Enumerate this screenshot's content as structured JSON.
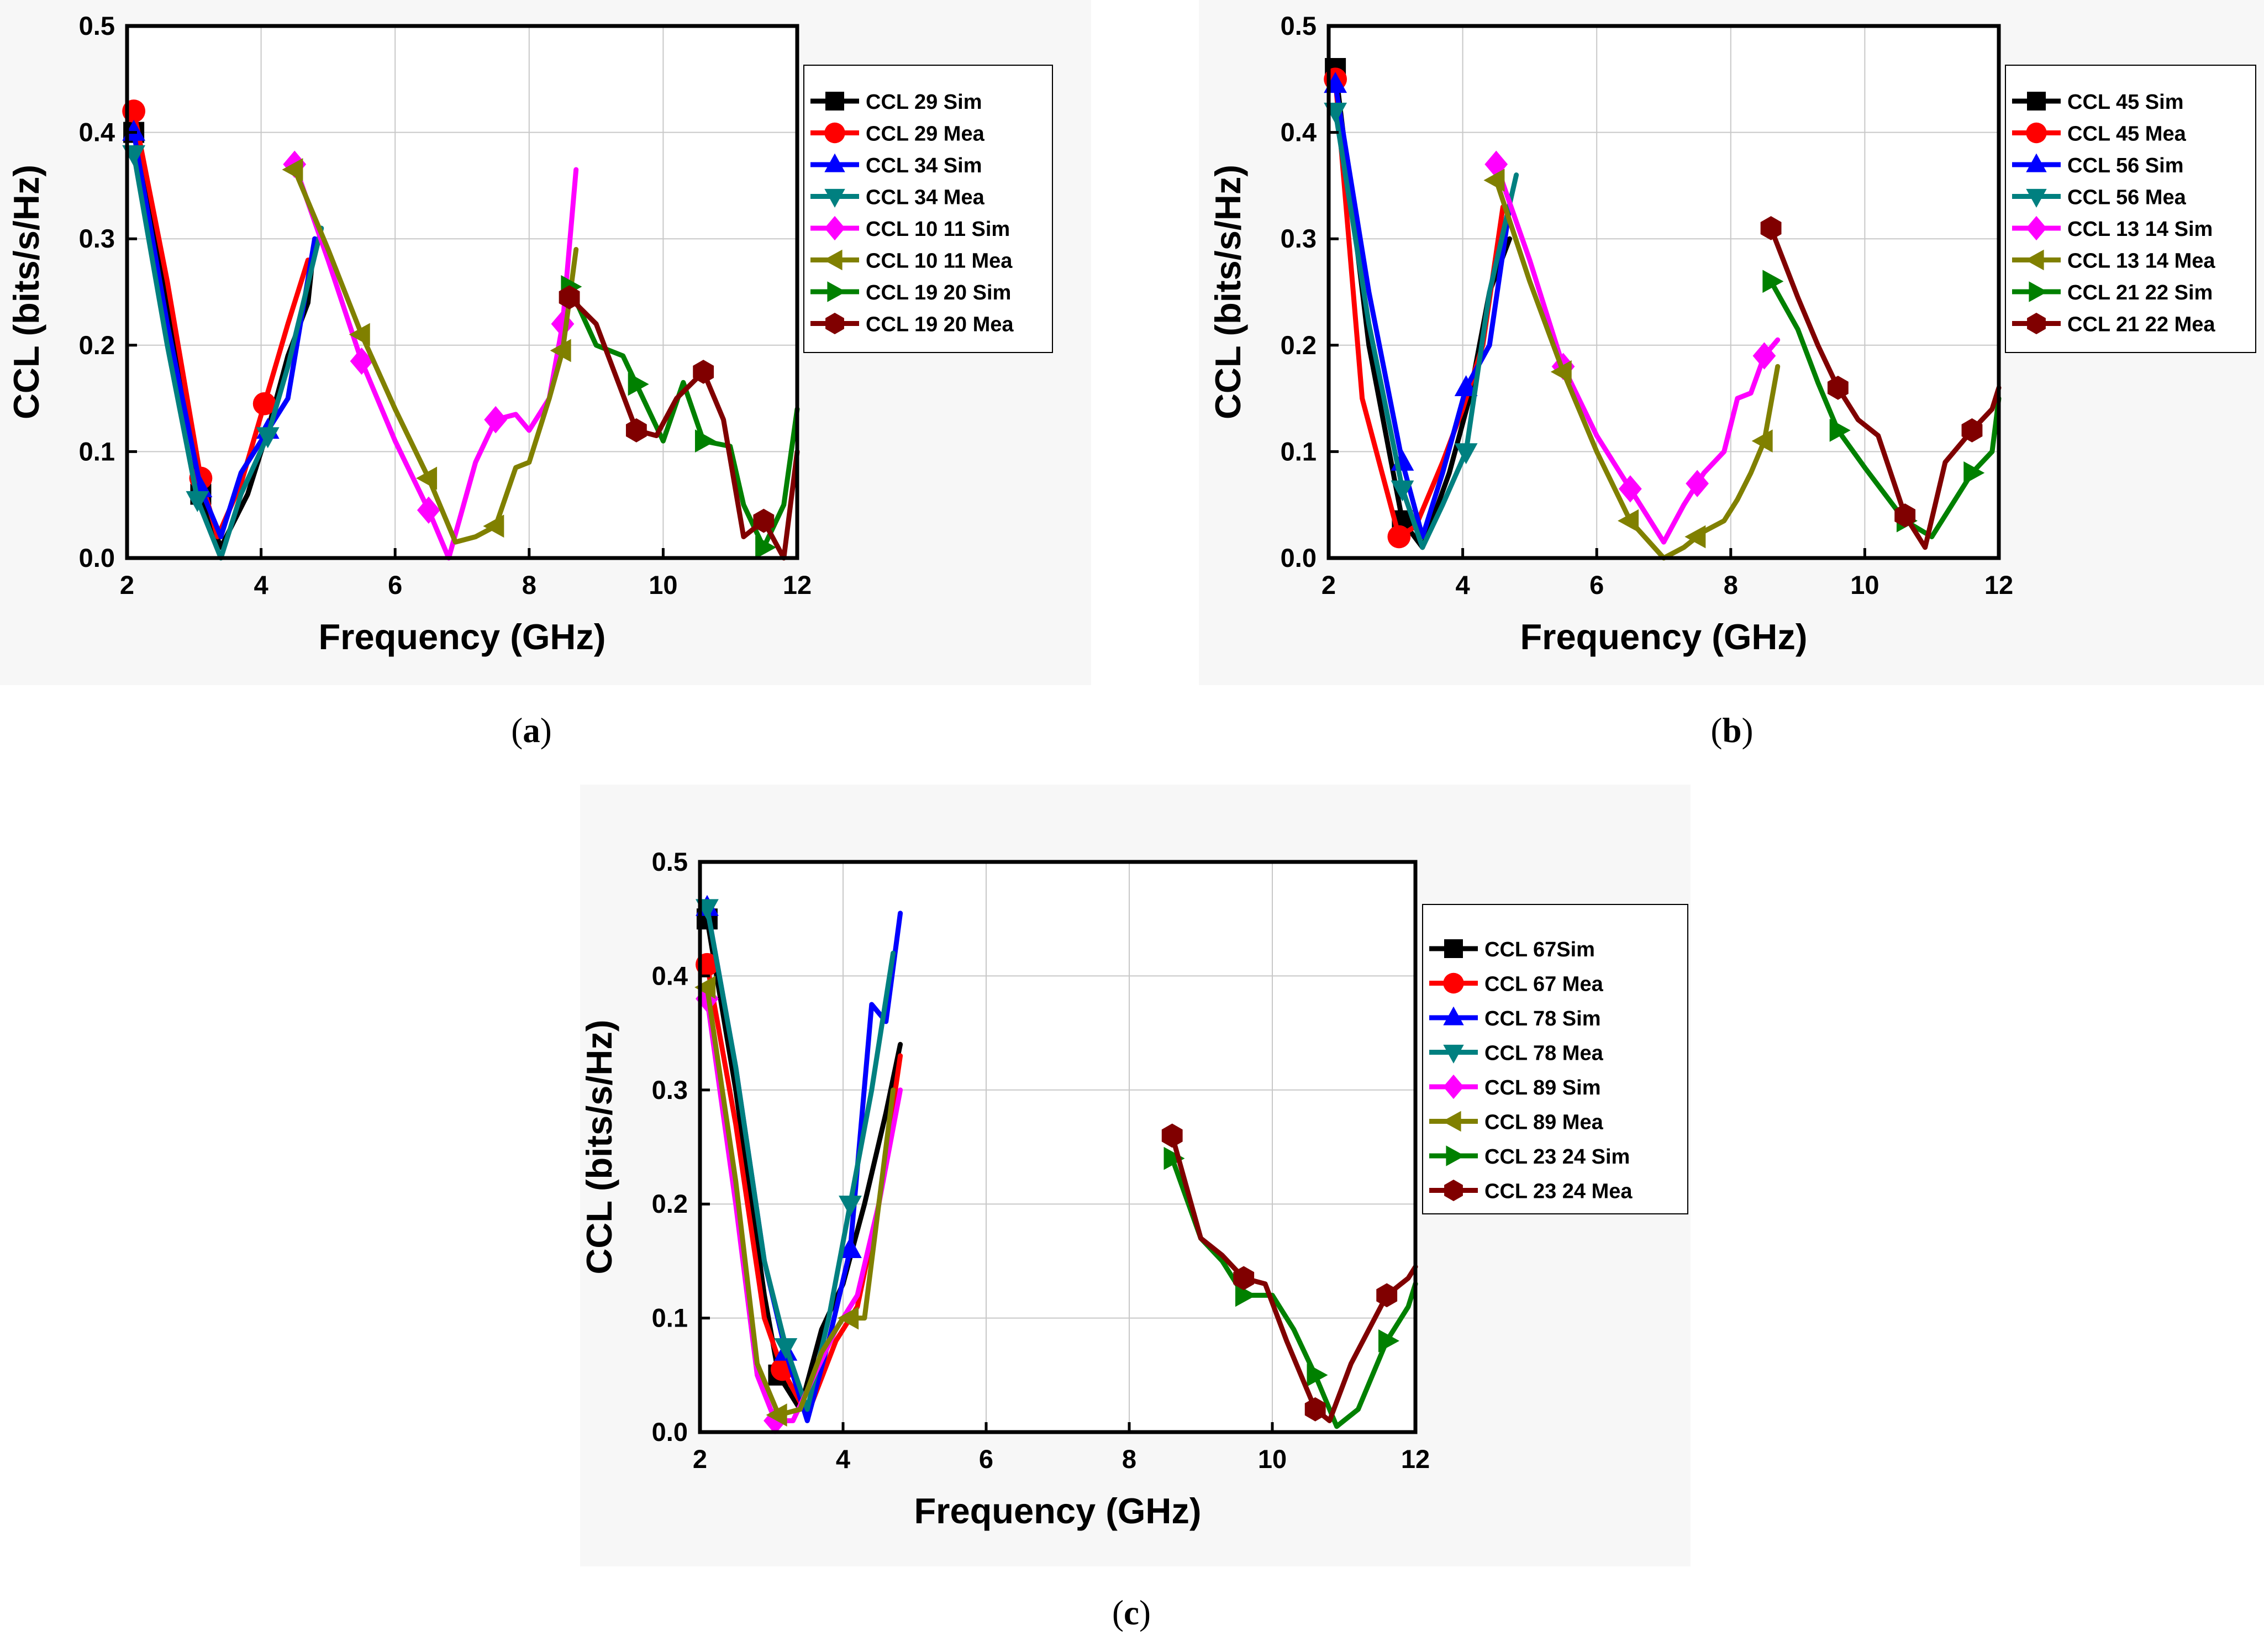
{
  "figure": {
    "captions": {
      "a_open": "(",
      "a_letter": "a",
      "a_close": ")",
      "b_open": "(",
      "b_letter": "b",
      "b_close": ")",
      "c_open": "(",
      "c_letter": "c",
      "c_close": ")"
    }
  },
  "colors": {
    "black": "#000000",
    "red": "#ff0000",
    "blue": "#0000ff",
    "teal": "#008080",
    "magenta": "#ff00ff",
    "olive": "#808000",
    "green": "#008000",
    "maroon": "#800000"
  },
  "chart_data": [
    {
      "panel": "a",
      "type": "line",
      "xlabel": "Frequency (GHz)",
      "ylabel": "CCL (bits/s/Hz)",
      "xlim": [
        2,
        12
      ],
      "ylim": [
        0,
        0.5
      ],
      "xticks": [
        2,
        4,
        6,
        8,
        10,
        12
      ],
      "yticks": [
        0.0,
        0.1,
        0.2,
        0.3,
        0.4,
        0.5
      ],
      "xtick_labels": [
        "2",
        "4",
        "6",
        "8",
        "10",
        "12"
      ],
      "ytick_labels": [
        "0.0",
        "0.1",
        "0.2",
        "0.3",
        "0.4",
        "0.5"
      ],
      "grid": true,
      "legend_position": "right-top",
      "series": [
        {
          "name": "CCL 29 Sim",
          "color": "#000000",
          "marker": "square",
          "x": [
            2.1,
            2.6,
            3.1,
            3.4,
            3.8,
            4.1,
            4.4,
            4.7,
            4.8
          ],
          "y": [
            0.4,
            0.24,
            0.06,
            0.01,
            0.06,
            0.12,
            0.19,
            0.24,
            0.3
          ],
          "mx": [
            2.1,
            3.1
          ]
        },
        {
          "name": "CCL 29 Mea",
          "color": "#ff0000",
          "marker": "circle",
          "x": [
            2.1,
            2.6,
            3.1,
            3.35,
            3.7,
            4.05,
            4.4,
            4.7
          ],
          "y": [
            0.42,
            0.26,
            0.075,
            0.02,
            0.07,
            0.145,
            0.22,
            0.28
          ],
          "mx": [
            2.1,
            3.1,
            4.05
          ]
        },
        {
          "name": "CCL 34 Sim",
          "color": "#0000ff",
          "marker": "triangle-up",
          "x": [
            2.1,
            2.6,
            3.1,
            3.4,
            3.7,
            4.1,
            4.4,
            4.8
          ],
          "y": [
            0.4,
            0.22,
            0.065,
            0.02,
            0.08,
            0.12,
            0.15,
            0.3
          ],
          "mx": [
            2.1,
            3.1,
            4.1
          ]
        },
        {
          "name": "CCL 34 Mea",
          "color": "#008080",
          "marker": "triangle-down",
          "x": [
            2.1,
            2.6,
            3.05,
            3.4,
            3.7,
            4.1,
            4.4,
            4.9
          ],
          "y": [
            0.38,
            0.2,
            0.055,
            0.0,
            0.06,
            0.115,
            0.18,
            0.31
          ],
          "mx": [
            2.1,
            3.05,
            4.1
          ]
        },
        {
          "name": "CCL 10 11 Sim",
          "color": "#ff00ff",
          "marker": "diamond",
          "x": [
            4.5,
            5.0,
            5.5,
            6.0,
            6.5,
            6.8,
            7.2,
            7.5,
            7.8,
            8.0,
            8.3,
            8.5,
            8.7
          ],
          "y": [
            0.37,
            0.28,
            0.185,
            0.11,
            0.045,
            0.0,
            0.09,
            0.13,
            0.135,
            0.12,
            0.15,
            0.22,
            0.365
          ],
          "mx": [
            4.5,
            5.5,
            6.5,
            7.5,
            8.5
          ]
        },
        {
          "name": "CCL 10 11 Mea",
          "color": "#808000",
          "marker": "triangle-left",
          "x": [
            4.5,
            5.0,
            5.5,
            6.0,
            6.5,
            6.9,
            7.2,
            7.5,
            7.8,
            8.0,
            8.3,
            8.5,
            8.7
          ],
          "y": [
            0.365,
            0.29,
            0.21,
            0.14,
            0.075,
            0.015,
            0.02,
            0.03,
            0.085,
            0.09,
            0.15,
            0.195,
            0.29
          ],
          "mx": [
            4.5,
            5.5,
            6.5,
            7.5,
            8.5
          ]
        },
        {
          "name": "CCL 19 20 Sim",
          "color": "#008000",
          "marker": "triangle-right",
          "x": [
            8.6,
            9.0,
            9.4,
            9.7,
            10.0,
            10.3,
            10.6,
            11.0,
            11.2,
            11.5,
            11.8,
            12.0
          ],
          "y": [
            0.255,
            0.2,
            0.19,
            0.15,
            0.11,
            0.165,
            0.11,
            0.105,
            0.05,
            0.01,
            0.05,
            0.14
          ],
          "mx": [
            8.6,
            9.6,
            10.6,
            11.5
          ]
        },
        {
          "name": "CCL 19 20 Mea",
          "color": "#800000",
          "marker": "hexagon",
          "x": [
            8.6,
            9.0,
            9.3,
            9.6,
            9.9,
            10.2,
            10.6,
            10.9,
            11.2,
            11.5,
            11.8,
            12.0
          ],
          "y": [
            0.245,
            0.22,
            0.17,
            0.12,
            0.115,
            0.15,
            0.175,
            0.13,
            0.02,
            0.035,
            0.0,
            0.1
          ],
          "mx": [
            8.6,
            9.6,
            10.6,
            11.5
          ]
        }
      ]
    },
    {
      "panel": "b",
      "type": "line",
      "xlabel": "Frequency (GHz)",
      "ylabel": "CCL (bits/s/Hz)",
      "xlim": [
        2,
        12
      ],
      "ylim": [
        0,
        0.5
      ],
      "xticks": [
        2,
        4,
        6,
        8,
        10,
        12
      ],
      "yticks": [
        0.0,
        0.1,
        0.2,
        0.3,
        0.4,
        0.5
      ],
      "xtick_labels": [
        "2",
        "4",
        "6",
        "8",
        "10",
        "12"
      ],
      "ytick_labels": [
        "0.0",
        "0.1",
        "0.2",
        "0.3",
        "0.4",
        "0.5"
      ],
      "grid": true,
      "legend_position": "right-top",
      "series": [
        {
          "name": "CCL 45 Sim",
          "color": "#000000",
          "marker": "square",
          "x": [
            2.1,
            2.6,
            3.1,
            3.4,
            3.8,
            4.1,
            4.4,
            4.7
          ],
          "y": [
            0.46,
            0.2,
            0.035,
            0.01,
            0.08,
            0.15,
            0.25,
            0.3
          ],
          "mx": [
            2.1,
            3.1
          ]
        },
        {
          "name": "CCL 45 Mea",
          "color": "#ff0000",
          "marker": "circle",
          "x": [
            2.1,
            2.5,
            3.05,
            3.3,
            3.7,
            4.0,
            4.3,
            4.6
          ],
          "y": [
            0.45,
            0.15,
            0.02,
            0.03,
            0.09,
            0.14,
            0.2,
            0.33
          ],
          "mx": [
            2.1,
            3.05
          ]
        },
        {
          "name": "CCL 56 Sim",
          "color": "#0000ff",
          "marker": "triangle-up",
          "x": [
            2.1,
            2.6,
            3.1,
            3.4,
            3.7,
            4.05,
            4.4,
            4.7
          ],
          "y": [
            0.445,
            0.25,
            0.09,
            0.02,
            0.08,
            0.16,
            0.2,
            0.33
          ],
          "mx": [
            2.1,
            3.1,
            4.05
          ]
        },
        {
          "name": "CCL 56 Mea",
          "color": "#008080",
          "marker": "triangle-down",
          "x": [
            2.1,
            2.6,
            3.1,
            3.4,
            3.7,
            4.05,
            4.4,
            4.8
          ],
          "y": [
            0.42,
            0.22,
            0.065,
            0.01,
            0.05,
            0.1,
            0.25,
            0.36
          ],
          "mx": [
            2.1,
            3.1,
            4.05
          ]
        },
        {
          "name": "CCL 13 14 Sim",
          "color": "#ff00ff",
          "marker": "diamond",
          "x": [
            4.5,
            5.0,
            5.5,
            6.0,
            6.5,
            7.0,
            7.3,
            7.6,
            7.9,
            8.1,
            8.3,
            8.5,
            8.7
          ],
          "y": [
            0.37,
            0.28,
            0.18,
            0.115,
            0.065,
            0.015,
            0.05,
            0.08,
            0.1,
            0.15,
            0.155,
            0.19,
            0.205
          ],
          "mx": [
            4.5,
            5.5,
            6.5,
            7.5,
            8.5
          ]
        },
        {
          "name": "CCL 13 14 Mea",
          "color": "#808000",
          "marker": "triangle-left",
          "x": [
            4.5,
            5.0,
            5.5,
            6.0,
            6.5,
            7.0,
            7.3,
            7.6,
            7.9,
            8.1,
            8.3,
            8.5,
            8.7
          ],
          "y": [
            0.355,
            0.26,
            0.175,
            0.1,
            0.035,
            0.0,
            0.01,
            0.025,
            0.035,
            0.055,
            0.08,
            0.11,
            0.18
          ],
          "mx": [
            4.5,
            5.5,
            6.5,
            7.5,
            8.5
          ]
        },
        {
          "name": "CCL 21 22 Sim",
          "color": "#008000",
          "marker": "triangle-right",
          "x": [
            8.6,
            9.0,
            9.3,
            9.6,
            10.0,
            10.3,
            10.6,
            11.0,
            11.3,
            11.6,
            11.9,
            12.0
          ],
          "y": [
            0.26,
            0.215,
            0.165,
            0.12,
            0.085,
            0.06,
            0.035,
            0.02,
            0.05,
            0.08,
            0.1,
            0.15
          ],
          "mx": [
            8.6,
            9.6,
            10.6,
            11.6
          ]
        },
        {
          "name": "CCL 21 22 Mea",
          "color": "#800000",
          "marker": "hexagon",
          "x": [
            8.6,
            9.0,
            9.3,
            9.6,
            9.9,
            10.2,
            10.6,
            10.9,
            11.2,
            11.6,
            11.9,
            12.0
          ],
          "y": [
            0.31,
            0.245,
            0.2,
            0.16,
            0.13,
            0.115,
            0.04,
            0.01,
            0.09,
            0.12,
            0.14,
            0.16
          ],
          "mx": [
            8.6,
            9.6,
            10.6,
            11.6
          ]
        }
      ]
    },
    {
      "panel": "c",
      "type": "line",
      "xlabel": "Frequency (GHz)",
      "ylabel": "CCL (bits/s/Hz)",
      "xlim": [
        2,
        12
      ],
      "ylim": [
        0,
        0.5
      ],
      "xticks": [
        2,
        4,
        6,
        8,
        10,
        12
      ],
      "yticks": [
        0.0,
        0.1,
        0.2,
        0.3,
        0.4,
        0.5
      ],
      "xtick_labels": [
        "2",
        "4",
        "6",
        "8",
        "10",
        "12"
      ],
      "ytick_labels": [
        "0.0",
        "0.1",
        "0.2",
        "0.3",
        "0.4",
        "0.5"
      ],
      "grid": true,
      "legend_position": "right-top",
      "series": [
        {
          "name": "CCL 67Sim",
          "color": "#000000",
          "marker": "square",
          "x": [
            2.1,
            2.5,
            2.9,
            3.1,
            3.4,
            3.7,
            4.0,
            4.3,
            4.6,
            4.8
          ],
          "y": [
            0.45,
            0.3,
            0.12,
            0.05,
            0.02,
            0.09,
            0.13,
            0.2,
            0.28,
            0.34
          ],
          "mx": [
            2.1,
            3.1
          ]
        },
        {
          "name": "CCL 67 Mea",
          "color": "#ff0000",
          "marker": "circle",
          "x": [
            2.1,
            2.5,
            2.9,
            3.15,
            3.5,
            3.9,
            4.2,
            4.5,
            4.8
          ],
          "y": [
            0.41,
            0.27,
            0.1,
            0.055,
            0.015,
            0.08,
            0.11,
            0.2,
            0.33
          ],
          "mx": [
            2.1,
            3.15
          ]
        },
        {
          "name": "CCL 78 Sim",
          "color": "#0000ff",
          "marker": "triangle-up",
          "x": [
            2.1,
            2.5,
            2.9,
            3.2,
            3.5,
            3.8,
            4.1,
            4.4,
            4.6,
            4.8
          ],
          "y": [
            0.46,
            0.32,
            0.15,
            0.07,
            0.01,
            0.08,
            0.16,
            0.375,
            0.36,
            0.455
          ],
          "mx": [
            2.1,
            3.2,
            4.1
          ]
        },
        {
          "name": "CCL 78 Mea",
          "color": "#008080",
          "marker": "triangle-down",
          "x": [
            2.1,
            2.5,
            2.9,
            3.2,
            3.5,
            3.8,
            4.1,
            4.4,
            4.7
          ],
          "y": [
            0.46,
            0.32,
            0.15,
            0.075,
            0.02,
            0.1,
            0.2,
            0.3,
            0.42
          ],
          "mx": [
            2.1,
            3.2,
            4.1
          ]
        },
        {
          "name": "CCL 89 Sim",
          "color": "#ff00ff",
          "marker": "diamond",
          "x": [
            2.1,
            2.5,
            2.8,
            3.05,
            3.3,
            3.6,
            3.9,
            4.2,
            4.5,
            4.8
          ],
          "y": [
            0.38,
            0.2,
            0.05,
            0.01,
            0.01,
            0.05,
            0.09,
            0.12,
            0.2,
            0.3
          ],
          "mx": [
            2.1,
            3.05
          ]
        },
        {
          "name": "CCL 89 Mea",
          "color": "#808000",
          "marker": "triangle-left",
          "x": [
            2.1,
            2.5,
            2.8,
            3.1,
            3.4,
            3.7,
            4.0,
            4.3,
            4.6,
            4.7
          ],
          "y": [
            0.39,
            0.22,
            0.06,
            0.015,
            0.02,
            0.07,
            0.1,
            0.1,
            0.25,
            0.3
          ],
          "mx": [
            2.1,
            3.1,
            4.1
          ]
        },
        {
          "name": "CCL 23 24 Sim",
          "color": "#008000",
          "marker": "triangle-right",
          "x": [
            8.6,
            9.0,
            9.3,
            9.6,
            10.0,
            10.3,
            10.6,
            10.9,
            11.2,
            11.6,
            11.9,
            12.0
          ],
          "y": [
            0.24,
            0.17,
            0.15,
            0.12,
            0.12,
            0.09,
            0.05,
            0.005,
            0.02,
            0.08,
            0.11,
            0.13
          ],
          "mx": [
            8.6,
            9.6,
            10.6,
            11.6
          ]
        },
        {
          "name": "CCL 23 24 Mea",
          "color": "#800000",
          "marker": "hexagon",
          "x": [
            8.6,
            9.0,
            9.3,
            9.6,
            9.9,
            10.2,
            10.6,
            10.8,
            11.1,
            11.6,
            11.9,
            12.0
          ],
          "y": [
            0.26,
            0.17,
            0.155,
            0.135,
            0.13,
            0.08,
            0.02,
            0.01,
            0.06,
            0.12,
            0.135,
            0.145
          ],
          "mx": [
            8.6,
            9.6,
            10.6,
            11.6
          ]
        }
      ]
    }
  ]
}
